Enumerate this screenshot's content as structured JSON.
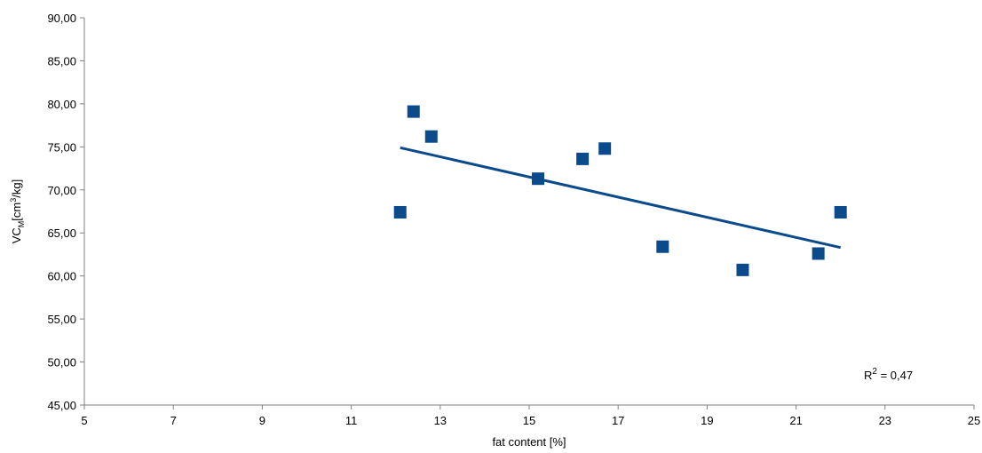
{
  "chart_data": {
    "type": "scatter",
    "x": [
      12.1,
      12.4,
      12.8,
      15.2,
      16.2,
      16.7,
      18.0,
      19.8,
      21.5,
      22.0
    ],
    "values": [
      67.4,
      79.1,
      76.2,
      71.3,
      73.6,
      74.8,
      63.4,
      60.7,
      62.6,
      67.4
    ],
    "color": "#0b4a8b",
    "trendline": {
      "x": [
        12.1,
        22.0
      ],
      "values": [
        74.9,
        63.3
      ]
    },
    "xlim": [
      5,
      25
    ],
    "xticks": [
      5,
      7,
      9,
      11,
      13,
      15,
      17,
      19,
      21,
      23,
      25
    ],
    "ylim": [
      45,
      90
    ],
    "yticks": [
      {
        "value": 45,
        "label": "45,00"
      },
      {
        "value": 50,
        "label": "50,00"
      },
      {
        "value": 55,
        "label": "55,00"
      },
      {
        "value": 60,
        "label": "60,00"
      },
      {
        "value": 65,
        "label": "65,00"
      },
      {
        "value": 70,
        "label": "70,00"
      },
      {
        "value": 75,
        "label": "75,00"
      },
      {
        "value": 80,
        "label": "80,00"
      },
      {
        "value": 85,
        "label": "85,00"
      },
      {
        "value": 90,
        "label": "90,00"
      }
    ],
    "x_label": "fat content  [%]",
    "y_label": {
      "main": "VC",
      "sub": "M",
      "mid": "[cm",
      "sup": "3",
      "end": "/kg]"
    },
    "annotation": {
      "main": "R",
      "sup": "2",
      "end": " = 0,47"
    },
    "grid": false
  }
}
